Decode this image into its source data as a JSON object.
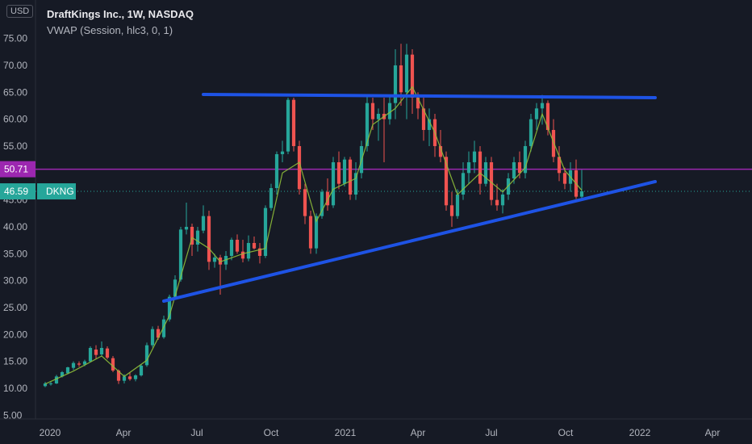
{
  "header": {
    "currency": "USD",
    "title": "DraftKings Inc., 1W, NASDAQ",
    "indicator": "VWAP (Session, hlc3, 0, 1)"
  },
  "colors": {
    "background": "#161a25",
    "up": "#26a69a",
    "down": "#ef5350",
    "vwap": "#8fbf3a",
    "trendline": "#1e53e5",
    "level": "#9c27b0",
    "price_label": "#26a69a"
  },
  "chart_data": {
    "type": "candlestick",
    "title": "DraftKings Inc., 1W, NASDAQ",
    "ylim": [
      5,
      80
    ],
    "y_ticks": [
      "75.00",
      "70.00",
      "65.00",
      "60.00",
      "55.00",
      "50.00",
      "45.00",
      "40.00",
      "35.00",
      "30.00",
      "25.00",
      "20.00",
      "15.00",
      "10.00",
      "5.00"
    ],
    "x_ticks": [
      "2020",
      "Apr",
      "Jul",
      "Oct",
      "2021",
      "Apr",
      "Jul",
      "Oct",
      "2022",
      "Apr"
    ],
    "grid": false,
    "price_labels": [
      {
        "value": 50.71,
        "text": "50.71",
        "color": "#9c27b0"
      },
      {
        "value": 46.59,
        "text": "46.59",
        "tag": "DKNG",
        "color": "#26a69a"
      }
    ],
    "trendlines": [
      {
        "name": "resistance",
        "points": [
          [
            "2020-07-09",
            64.6
          ],
          [
            "2022-01-20",
            64.0
          ]
        ]
      },
      {
        "name": "support",
        "points": [
          [
            "2020-05-21",
            26.2
          ],
          [
            "2022-01-20",
            48.4
          ]
        ]
      }
    ],
    "horizontal_level": 50.71,
    "series": [
      {
        "name": "DKNG",
        "fields": [
          "date",
          "open",
          "high",
          "low",
          "close"
        ],
        "values": [
          [
            "2019-12-26",
            10.4,
            11.2,
            10.2,
            10.9
          ],
          [
            "2020-01-02",
            10.8,
            11.3,
            10.5,
            10.9
          ],
          [
            "2020-01-09",
            10.9,
            12.5,
            10.8,
            12.2
          ],
          [
            "2020-01-16",
            12.2,
            13.2,
            12.0,
            13.0
          ],
          [
            "2020-01-23",
            12.8,
            14.0,
            12.6,
            13.9
          ],
          [
            "2020-01-30",
            13.8,
            15.0,
            13.4,
            14.7
          ],
          [
            "2020-02-06",
            14.6,
            15.0,
            14.0,
            14.4
          ],
          [
            "2020-02-13",
            14.4,
            15.3,
            14.1,
            15.0
          ],
          [
            "2020-02-20",
            15.0,
            17.8,
            14.8,
            17.5
          ],
          [
            "2020-02-27",
            17.2,
            18.0,
            15.4,
            16.2
          ],
          [
            "2020-03-05",
            16.3,
            18.7,
            15.9,
            17.5
          ],
          [
            "2020-03-12",
            17.4,
            17.8,
            15.4,
            15.7
          ],
          [
            "2020-03-19",
            15.6,
            16.0,
            13.0,
            13.3
          ],
          [
            "2020-03-26",
            13.3,
            13.5,
            10.8,
            11.4
          ],
          [
            "2020-04-02",
            11.4,
            12.6,
            10.9,
            12.2
          ],
          [
            "2020-04-09",
            12.2,
            13.0,
            11.4,
            11.7
          ],
          [
            "2020-04-16",
            11.7,
            12.6,
            11.3,
            12.4
          ],
          [
            "2020-04-23",
            12.4,
            14.5,
            12.2,
            14.2
          ],
          [
            "2020-04-30",
            14.3,
            18.5,
            14.0,
            18.0
          ],
          [
            "2020-05-07",
            18.0,
            21.5,
            17.6,
            21.0
          ],
          [
            "2020-05-14",
            21.0,
            21.6,
            19.0,
            19.4
          ],
          [
            "2020-05-21",
            19.5,
            23.5,
            19.2,
            22.8
          ],
          [
            "2020-05-28",
            22.8,
            27.4,
            22.4,
            27.0
          ],
          [
            "2020-06-04",
            27.0,
            31.0,
            26.6,
            30.2
          ],
          [
            "2020-06-11",
            30.2,
            40.0,
            29.8,
            39.5
          ],
          [
            "2020-06-18",
            39.5,
            44.5,
            38.6,
            40.0
          ],
          [
            "2020-06-25",
            40.0,
            40.6,
            34.6,
            36.7
          ],
          [
            "2020-07-02",
            36.7,
            40.0,
            35.4,
            39.3
          ],
          [
            "2020-07-09",
            39.3,
            44.0,
            38.8,
            42.0
          ],
          [
            "2020-07-16",
            42.0,
            43.0,
            32.0,
            33.5
          ],
          [
            "2020-07-23",
            33.5,
            35.0,
            32.4,
            34.3
          ],
          [
            "2020-07-30",
            34.3,
            34.8,
            27.4,
            33.0
          ],
          [
            "2020-08-06",
            33.0,
            35.5,
            32.0,
            34.6
          ],
          [
            "2020-08-13",
            34.6,
            38.0,
            33.8,
            37.6
          ],
          [
            "2020-08-20",
            37.6,
            38.6,
            35.0,
            35.4
          ],
          [
            "2020-08-27",
            35.4,
            37.6,
            33.4,
            34.1
          ],
          [
            "2020-09-03",
            34.1,
            38.4,
            33.6,
            37.0
          ],
          [
            "2020-09-10",
            37.0,
            38.2,
            35.8,
            36.0
          ],
          [
            "2020-09-17",
            36.0,
            37.0,
            33.2,
            34.6
          ],
          [
            "2020-09-24",
            34.6,
            44.0,
            34.2,
            43.5
          ],
          [
            "2020-10-01",
            43.5,
            48.0,
            43.0,
            47.2
          ],
          [
            "2020-10-08",
            47.2,
            54.0,
            46.0,
            53.5
          ],
          [
            "2020-10-15",
            53.5,
            56.0,
            52.0,
            54.0
          ],
          [
            "2020-10-22",
            54.0,
            64.0,
            53.5,
            63.6
          ],
          [
            "2020-10-29",
            63.6,
            64.0,
            54.0,
            55.0
          ],
          [
            "2020-11-05",
            55.0,
            56.0,
            46.0,
            47.0
          ],
          [
            "2020-11-12",
            47.0,
            48.0,
            40.5,
            42.0
          ],
          [
            "2020-11-19",
            42.0,
            43.0,
            35.0,
            36.0
          ],
          [
            "2020-11-26",
            36.0,
            42.5,
            35.0,
            42.0
          ],
          [
            "2020-12-03",
            42.0,
            47.0,
            41.5,
            46.5
          ],
          [
            "2020-12-10",
            46.5,
            49.0,
            43.0,
            44.0
          ],
          [
            "2020-12-17",
            44.0,
            53.0,
            43.5,
            52.0
          ],
          [
            "2020-12-24",
            52.0,
            54.0,
            47.0,
            48.0
          ],
          [
            "2020-12-31",
            48.0,
            53.0,
            47.5,
            52.5
          ],
          [
            "2021-01-07",
            52.5,
            53.0,
            45.0,
            46.0
          ],
          [
            "2021-01-14",
            46.0,
            52.0,
            45.0,
            50.0
          ],
          [
            "2021-01-21",
            50.0,
            56.0,
            49.0,
            55.0
          ],
          [
            "2021-01-28",
            55.0,
            64.5,
            54.0,
            63.0
          ],
          [
            "2021-02-04",
            63.0,
            64.0,
            58.0,
            60.0
          ],
          [
            "2021-02-11",
            60.0,
            62.0,
            56.0,
            61.0
          ],
          [
            "2021-02-18",
            61.0,
            64.0,
            52.0,
            60.0
          ],
          [
            "2021-02-25",
            60.0,
            64.5,
            59.0,
            63.0
          ],
          [
            "2021-03-04",
            63.0,
            73.0,
            60.0,
            70.0
          ],
          [
            "2021-03-11",
            70.0,
            74.0,
            62.5,
            65.0
          ],
          [
            "2021-03-18",
            65.0,
            74.0,
            60.0,
            72.0
          ],
          [
            "2021-03-25",
            72.0,
            73.0,
            61.0,
            64.0
          ],
          [
            "2021-04-01",
            64.0,
            65.0,
            60.0,
            62.0
          ],
          [
            "2021-04-08",
            62.0,
            64.0,
            56.0,
            58.0
          ],
          [
            "2021-04-15",
            58.0,
            62.0,
            55.0,
            60.0
          ],
          [
            "2021-04-22",
            60.0,
            61.0,
            53.0,
            55.0
          ],
          [
            "2021-04-29",
            55.0,
            58.0,
            52.0,
            53.0
          ],
          [
            "2021-05-06",
            53.0,
            54.0,
            43.0,
            44.0
          ],
          [
            "2021-05-13",
            44.0,
            46.5,
            40.0,
            42.0
          ],
          [
            "2021-05-20",
            42.0,
            47.0,
            41.5,
            46.0
          ],
          [
            "2021-05-27",
            46.0,
            52.0,
            45.0,
            50.0
          ],
          [
            "2021-06-03",
            50.0,
            54.0,
            48.0,
            52.0
          ],
          [
            "2021-06-10",
            52.0,
            56.0,
            50.0,
            54.0
          ],
          [
            "2021-06-17",
            54.0,
            55.0,
            46.0,
            48.0
          ],
          [
            "2021-06-24",
            48.0,
            53.0,
            47.5,
            52.0
          ],
          [
            "2021-07-01",
            52.0,
            53.0,
            44.0,
            45.0
          ],
          [
            "2021-07-08",
            45.0,
            48.0,
            43.0,
            44.0
          ],
          [
            "2021-07-15",
            44.0,
            47.0,
            42.5,
            46.0
          ],
          [
            "2021-07-22",
            46.0,
            50.0,
            45.0,
            49.0
          ],
          [
            "2021-07-29",
            49.0,
            53.0,
            48.0,
            52.0
          ],
          [
            "2021-08-05",
            52.0,
            54.0,
            49.0,
            50.0
          ],
          [
            "2021-08-12",
            50.0,
            56.0,
            49.0,
            55.0
          ],
          [
            "2021-08-19",
            55.0,
            61.0,
            54.0,
            60.0
          ],
          [
            "2021-08-26",
            60.0,
            63.0,
            58.0,
            62.0
          ],
          [
            "2021-09-02",
            62.0,
            64.5,
            59.0,
            63.0
          ],
          [
            "2021-09-09",
            63.0,
            63.5,
            57.0,
            58.0
          ],
          [
            "2021-09-16",
            58.0,
            60.0,
            52.0,
            53.0
          ],
          [
            "2021-09-23",
            53.0,
            55.0,
            48.5,
            50.0
          ],
          [
            "2021-09-30",
            50.0,
            51.0,
            47.0,
            48.0
          ],
          [
            "2021-10-07",
            48.0,
            52.0,
            46.5,
            50.5
          ],
          [
            "2021-10-14",
            50.5,
            52.5,
            45.2,
            45.6
          ],
          [
            "2021-10-21",
            45.6,
            50.6,
            45.0,
            46.6
          ]
        ]
      },
      {
        "name": "VWAP",
        "fields": [
          "date",
          "value"
        ],
        "values": [
          [
            "2019-12-26",
            10.8
          ],
          [
            "2020-01-30",
            13.2
          ],
          [
            "2020-03-05",
            16.0
          ],
          [
            "2020-04-02",
            12.2
          ],
          [
            "2020-04-30",
            15.2
          ],
          [
            "2020-05-28",
            23.5
          ],
          [
            "2020-06-25",
            38.0
          ],
          [
            "2020-07-16",
            36.0
          ],
          [
            "2020-07-30",
            33.5
          ],
          [
            "2020-08-27",
            35.0
          ],
          [
            "2020-09-24",
            36.0
          ],
          [
            "2020-10-15",
            50.0
          ],
          [
            "2020-11-05",
            52.0
          ],
          [
            "2020-11-26",
            41.0
          ],
          [
            "2020-12-17",
            47.0
          ],
          [
            "2021-01-14",
            49.0
          ],
          [
            "2021-02-04",
            59.0
          ],
          [
            "2021-03-04",
            62.0
          ],
          [
            "2021-03-25",
            66.0
          ],
          [
            "2021-04-22",
            57.5
          ],
          [
            "2021-05-20",
            46.0
          ],
          [
            "2021-06-17",
            50.0
          ],
          [
            "2021-07-15",
            46.5
          ],
          [
            "2021-08-12",
            51.0
          ],
          [
            "2021-09-02",
            61.0
          ],
          [
            "2021-09-30",
            50.5
          ],
          [
            "2021-10-21",
            46.8
          ]
        ]
      }
    ]
  }
}
